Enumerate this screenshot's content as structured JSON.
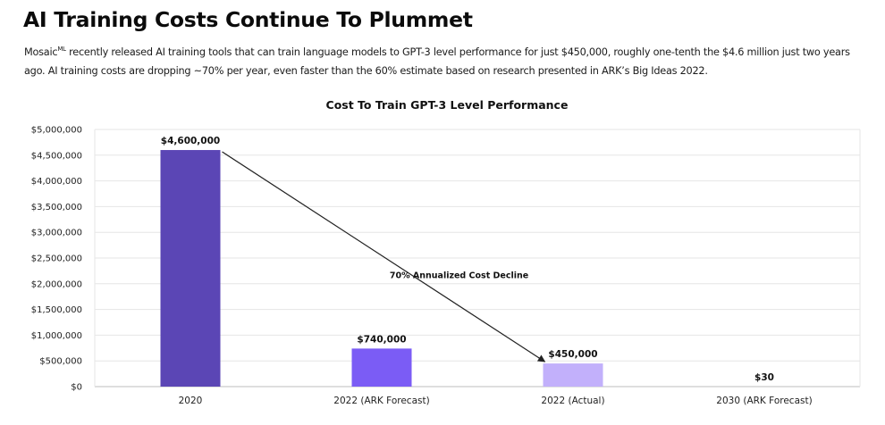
{
  "header": {
    "title": "AI Training Costs Continue To Plummet",
    "intro_prefix": "Mosaic",
    "intro_sup": "ML",
    "intro_body": " recently released AI training tools that can train language models to GPT-3 level performance for just $450,000, roughly one-tenth the $4.6 million just two years ago. AI training costs are dropping ~70% per year, even faster than the 60% estimate based on research presented in ARK’s Big Ideas 2022."
  },
  "chart_data": {
    "type": "bar",
    "title": "Cost To Train GPT-3 Level Performance",
    "xlabel": "",
    "ylabel": "",
    "categories": [
      "2020",
      "2022 (ARK Forecast)",
      "2022 (Actual)",
      "2030 (ARK Forecast)"
    ],
    "values": [
      4600000,
      740000,
      450000,
      30
    ],
    "data_labels": [
      "$4,600,000",
      "$740,000",
      "$450,000",
      "$30"
    ],
    "bar_colors": [
      "#5b46b5",
      "#7b5cf5",
      "#c2b0fb",
      "#c2b0fb"
    ],
    "ylim": [
      0,
      5000000
    ],
    "yticks": [
      0,
      500000,
      1000000,
      1500000,
      2000000,
      2500000,
      3000000,
      3500000,
      4000000,
      4500000,
      5000000
    ],
    "ytick_labels": [
      "$0",
      "$500,000",
      "$1,000,000",
      "$1,500,000",
      "$2,000,000",
      "$2,500,000",
      "$3,000,000",
      "$3,500,000",
      "$4,000,000",
      "$4,500,000",
      "$5,000,000"
    ],
    "grid": true,
    "annotation": {
      "text": "70% Annualized Cost Decline",
      "from_category": "2020",
      "to_category": "2022 (Actual)"
    }
  }
}
